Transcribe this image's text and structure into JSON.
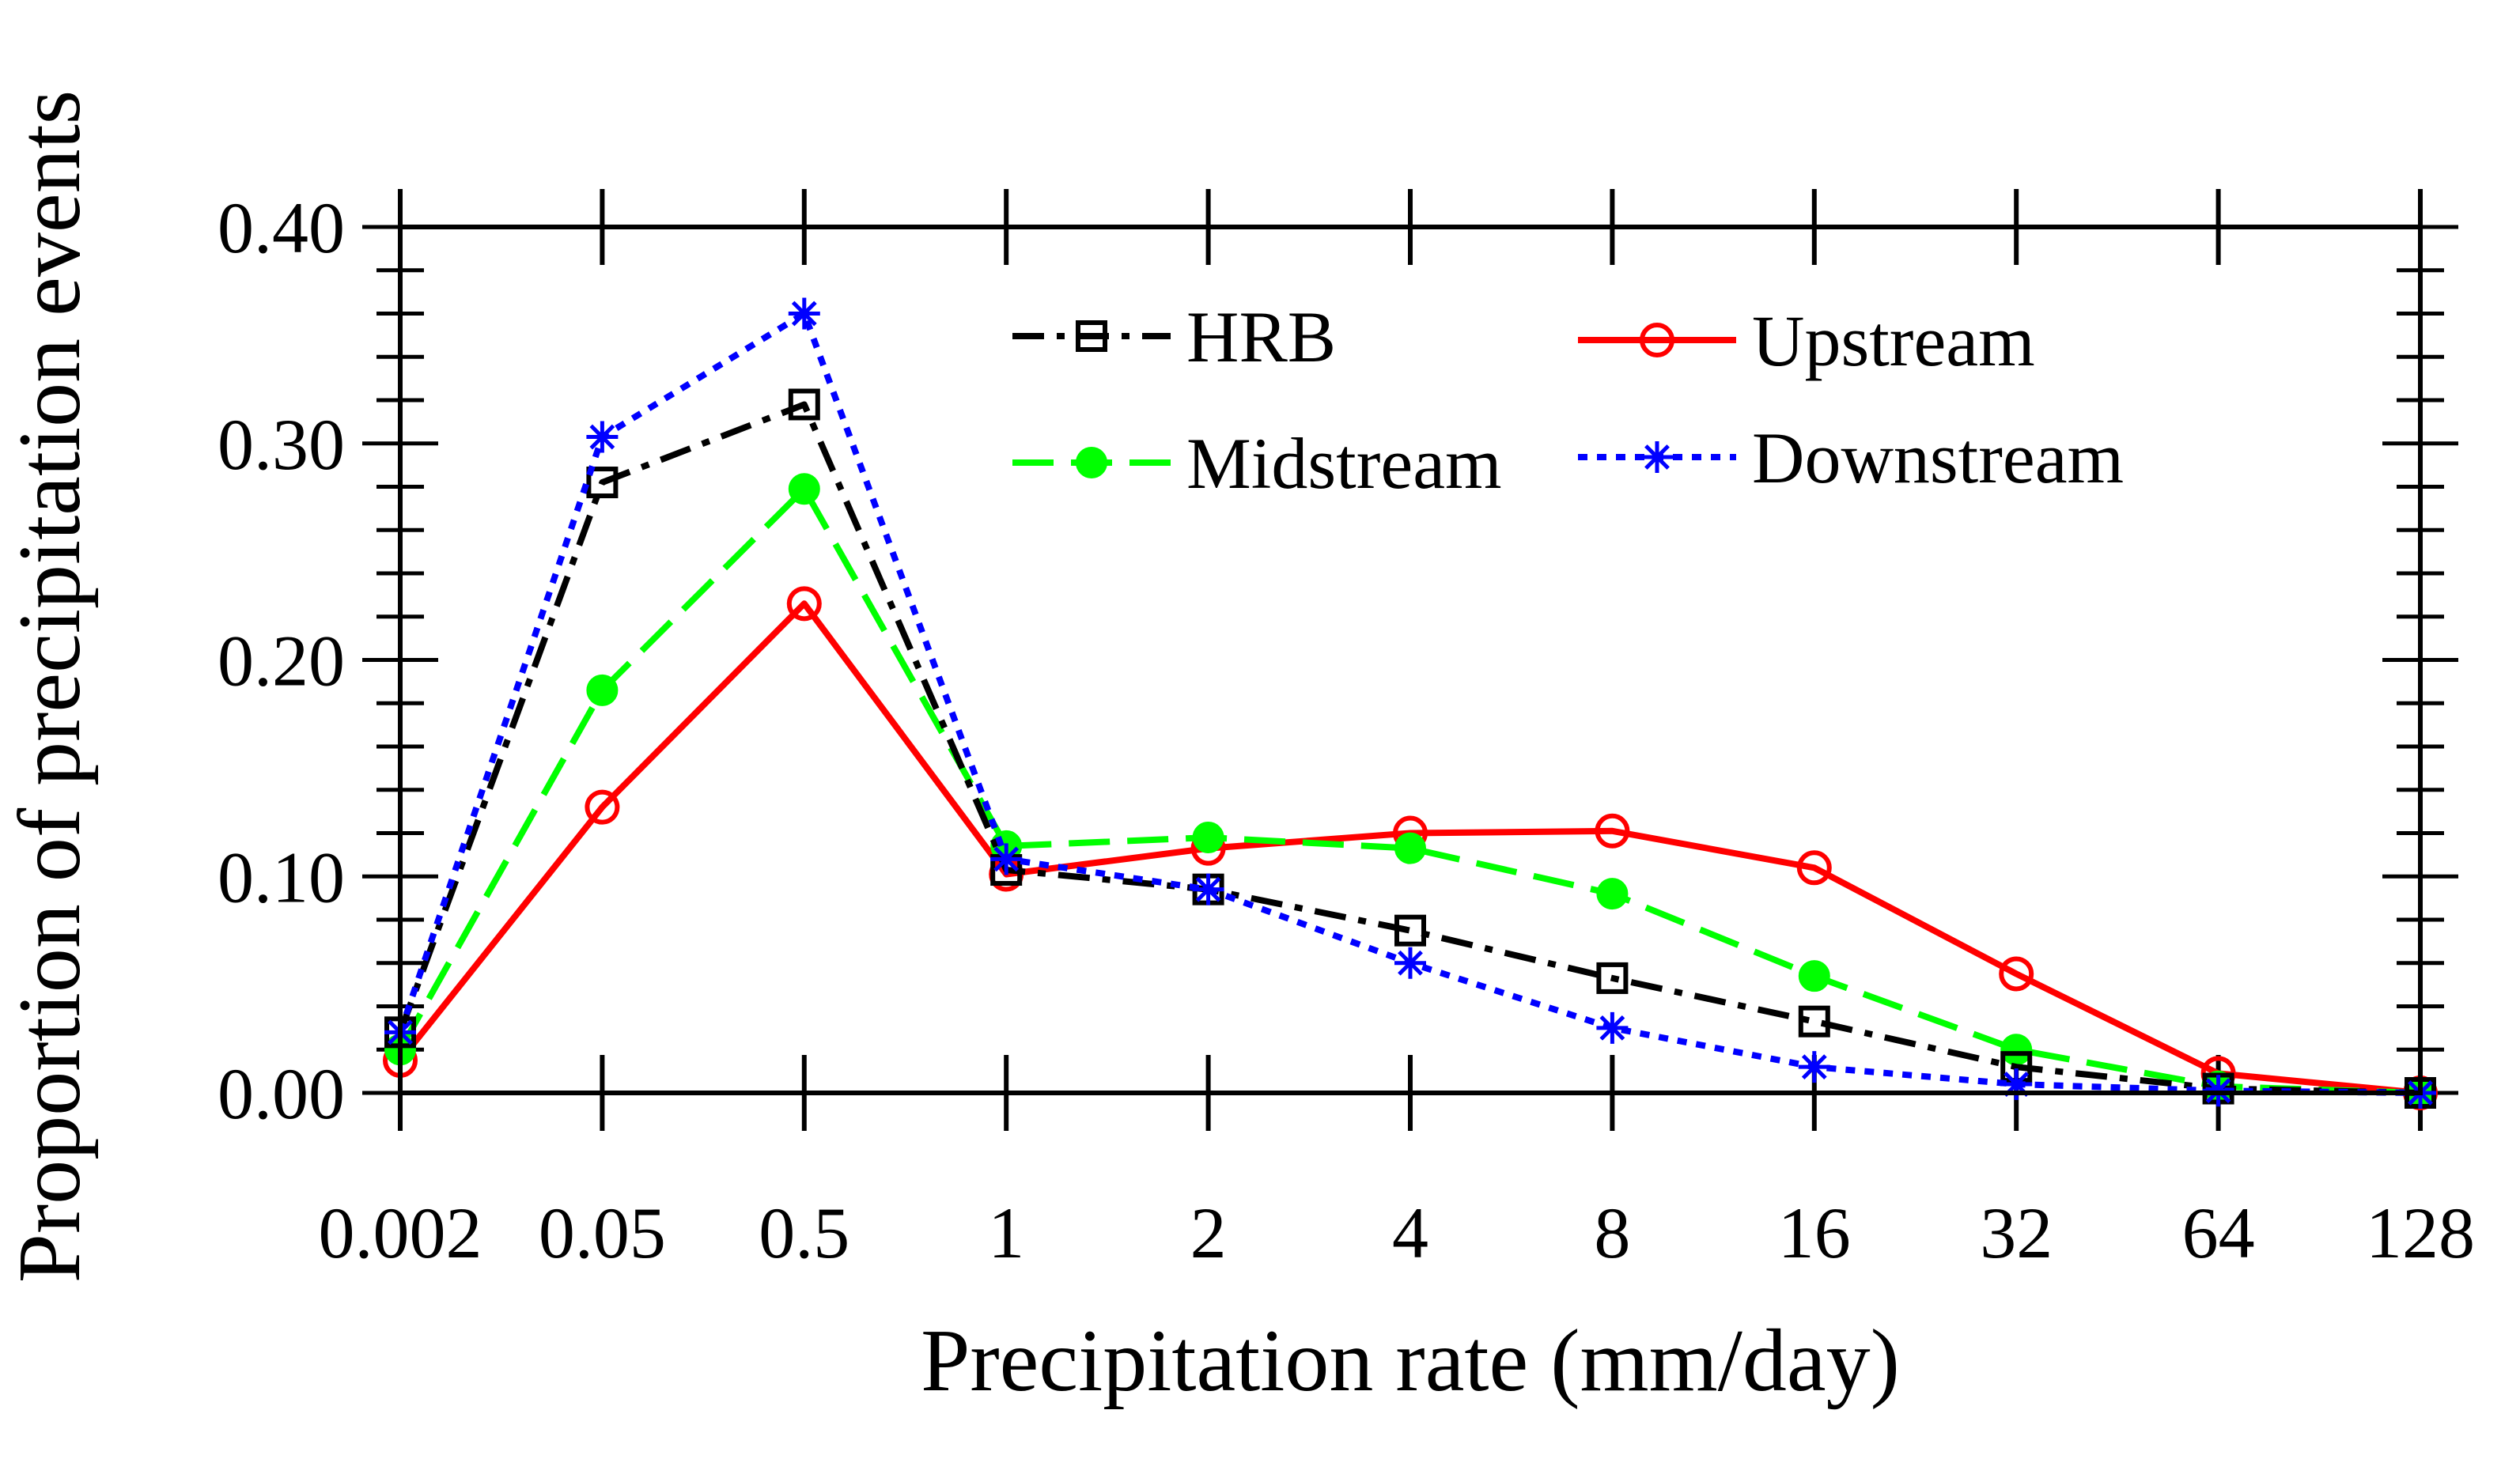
{
  "chart_data": {
    "type": "line",
    "title": "",
    "xlabel": "Precipitation rate (mm/day)",
    "ylabel": "Proportion of precipitation events",
    "categories": [
      "0.002",
      "0.05",
      "0.5",
      "1",
      "2",
      "4",
      "8",
      "16",
      "32",
      "64",
      "128"
    ],
    "ylim": [
      0,
      0.4
    ],
    "yticks": [
      "0.00",
      "0.10",
      "0.20",
      "0.30",
      "0.40"
    ],
    "grid": false,
    "legend_position": "top-right",
    "series": [
      {
        "name": "HRB",
        "color": "#000000",
        "style": "dash-dot",
        "marker": "open-square",
        "values": [
          0.028,
          0.282,
          0.318,
          0.103,
          0.094,
          0.075,
          0.053,
          0.033,
          0.012,
          0.002,
          0.0
        ]
      },
      {
        "name": "Upstream",
        "color": "#ff0000",
        "style": "solid",
        "marker": "open-circle",
        "values": [
          0.015,
          0.132,
          0.226,
          0.101,
          0.113,
          0.12,
          0.121,
          0.104,
          0.055,
          0.009,
          0.0
        ]
      },
      {
        "name": "Midstream",
        "color": "#00ff00",
        "style": "dashed",
        "marker": "filled-circle",
        "values": [
          0.02,
          0.186,
          0.279,
          0.114,
          0.118,
          0.113,
          0.092,
          0.054,
          0.02,
          0.003,
          0.0
        ]
      },
      {
        "name": "Downstream",
        "color": "#0000ff",
        "style": "dotted",
        "marker": "asterisk",
        "values": [
          0.028,
          0.303,
          0.36,
          0.108,
          0.094,
          0.06,
          0.03,
          0.012,
          0.004,
          0.001,
          0.0
        ]
      }
    ]
  }
}
